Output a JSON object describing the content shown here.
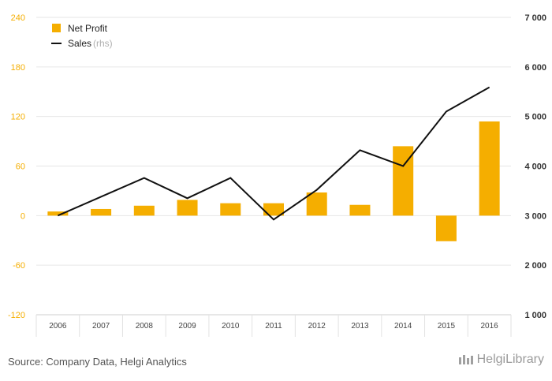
{
  "chart_data": {
    "type": "bar",
    "categories": [
      "2006",
      "2007",
      "2008",
      "2009",
      "2010",
      "2011",
      "2012",
      "2013",
      "2014",
      "2015",
      "2016"
    ],
    "series": [
      {
        "name": "Net Profit",
        "type": "bar",
        "axis": "left",
        "color": "#f5ae00",
        "values": [
          5,
          8,
          12,
          19,
          15,
          15,
          28,
          13,
          84,
          -31,
          114
        ]
      },
      {
        "name": "Sales",
        "name_suffix": "(rhs)",
        "type": "line",
        "axis": "right",
        "color": "#111111",
        "values": [
          3000,
          3380,
          3760,
          3350,
          3760,
          2920,
          3520,
          4320,
          4000,
          5100,
          5590
        ]
      }
    ],
    "y_left": {
      "lim": [
        -120,
        240
      ],
      "ticks": [
        "-120",
        "-60",
        "0",
        "60",
        "120",
        "180",
        "240"
      ],
      "color": "#f5ae00"
    },
    "y_right": {
      "lim": [
        1000,
        7000
      ],
      "ticks": [
        "1 000",
        "2 000",
        "3 000",
        "4 000",
        "5 000",
        "6 000",
        "7 000"
      ]
    },
    "grid": true,
    "legend": "top-left"
  },
  "footer": {
    "source": "Source: Company Data, Helgi Analytics",
    "logo": "HelgiLibrary"
  }
}
